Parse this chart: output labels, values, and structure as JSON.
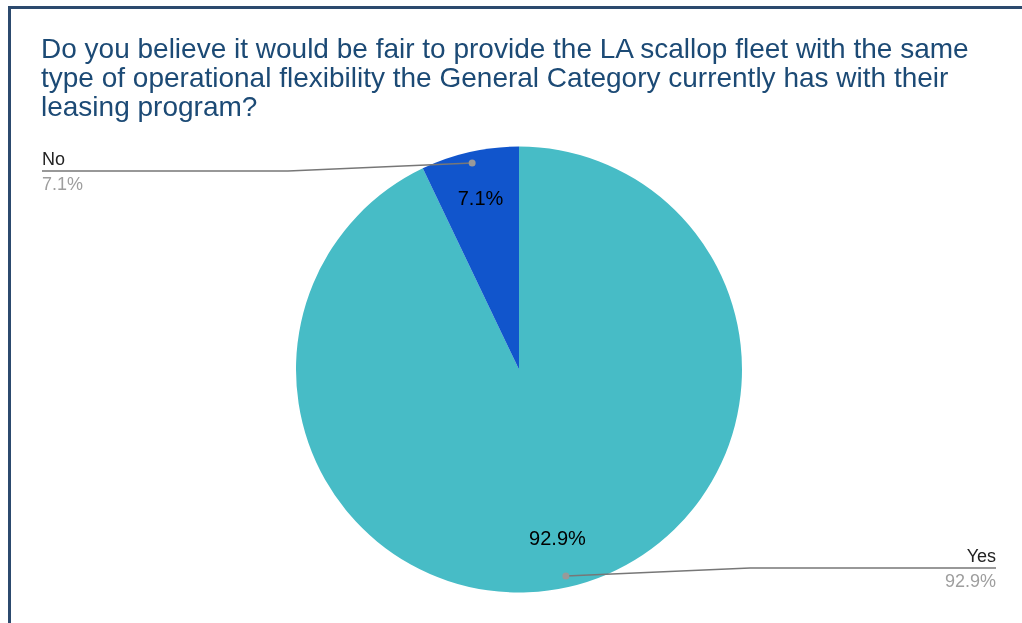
{
  "chart_data": {
    "type": "pie",
    "title": "Do you believe it would be fair to provide the LA scallop fleet with the same type of operational flexibility the General Category currently has with their leasing program?",
    "categories": [
      "Yes",
      "No"
    ],
    "values": [
      92.9,
      7.1
    ],
    "value_labels": [
      "92.9%",
      "7.1%"
    ],
    "colors": [
      "#47bcc6",
      "#1155cc"
    ],
    "data_labels": true
  }
}
